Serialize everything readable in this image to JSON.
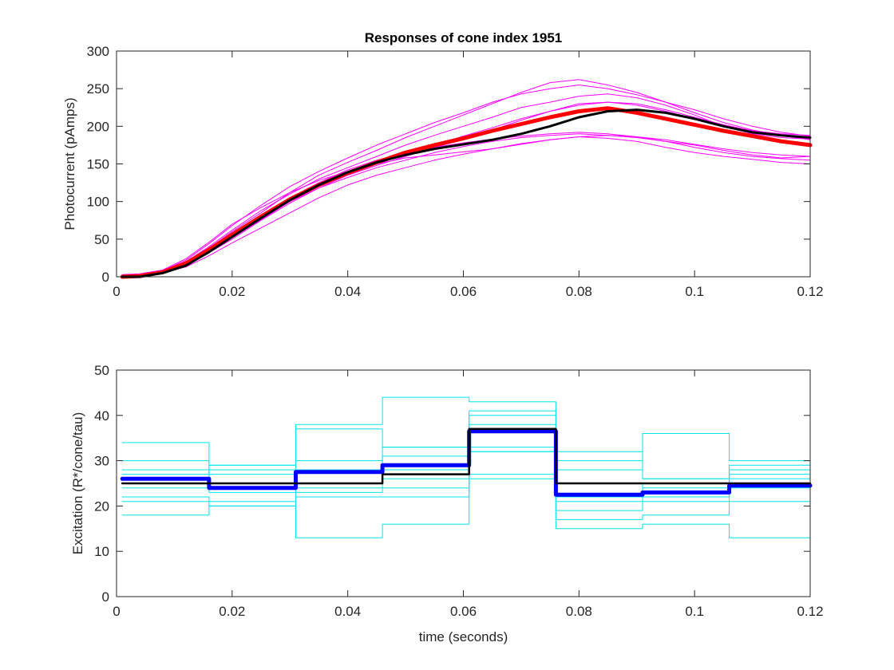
{
  "figure": {
    "background": "#ffffff"
  },
  "chart_data": [
    {
      "type": "line",
      "title": "Responses of cone index 1951",
      "xlabel": "",
      "ylabel": "Photocurrent (pAmps)",
      "xlim": [
        0,
        0.12
      ],
      "ylim": [
        0,
        300
      ],
      "xticks": [
        0,
        0.02,
        0.04,
        0.06,
        0.08,
        0.1,
        0.12
      ],
      "xtick_labels": [
        "0",
        "0.02",
        "0.04",
        "0.06",
        "0.08",
        "0.1",
        "0.12"
      ],
      "yticks": [
        0,
        50,
        100,
        150,
        200,
        250,
        300
      ],
      "ytick_labels": [
        "0",
        "50",
        "100",
        "150",
        "200",
        "250",
        "300"
      ],
      "grid": false,
      "series": [
        {
          "role": "trial",
          "color": "#ff00ff",
          "width": 1,
          "x": [
            0.001,
            0.004,
            0.008,
            0.012,
            0.016,
            0.02,
            0.025,
            0.03,
            0.035,
            0.04,
            0.045,
            0.05,
            0.055,
            0.06,
            0.065,
            0.07,
            0.075,
            0.08,
            0.085,
            0.09,
            0.095,
            0.1,
            0.105,
            0.11,
            0.115,
            0.12
          ],
          "y": [
            0,
            1,
            6,
            18,
            38,
            60,
            85,
            112,
            135,
            152,
            168,
            185,
            200,
            215,
            230,
            245,
            258,
            262,
            255,
            245,
            232,
            218,
            205,
            195,
            188,
            182
          ]
        },
        {
          "role": "trial",
          "color": "#ff00ff",
          "width": 1,
          "x": [
            0.001,
            0.004,
            0.008,
            0.012,
            0.016,
            0.02,
            0.025,
            0.03,
            0.035,
            0.04,
            0.045,
            0.05,
            0.055,
            0.06,
            0.065,
            0.07,
            0.075,
            0.08,
            0.085,
            0.09,
            0.095,
            0.1,
            0.105,
            0.11,
            0.115,
            0.12
          ],
          "y": [
            2,
            3,
            8,
            22,
            44,
            68,
            95,
            120,
            140,
            158,
            175,
            190,
            205,
            218,
            232,
            243,
            250,
            255,
            250,
            242,
            232,
            222,
            210,
            200,
            192,
            187
          ]
        },
        {
          "role": "trial",
          "color": "#ff00ff",
          "width": 1,
          "x": [
            0.001,
            0.004,
            0.008,
            0.012,
            0.016,
            0.02,
            0.025,
            0.03,
            0.035,
            0.04,
            0.045,
            0.05,
            0.055,
            0.06,
            0.065,
            0.07,
            0.075,
            0.08,
            0.085,
            0.09,
            0.095,
            0.1,
            0.105,
            0.11,
            0.115,
            0.12
          ],
          "y": [
            0,
            2,
            7,
            20,
            40,
            62,
            88,
            110,
            130,
            145,
            160,
            175,
            188,
            200,
            212,
            225,
            232,
            240,
            243,
            238,
            228,
            215,
            200,
            190,
            185,
            183
          ]
        },
        {
          "role": "trial",
          "color": "#ff00ff",
          "width": 1,
          "x": [
            0.001,
            0.004,
            0.008,
            0.012,
            0.016,
            0.02,
            0.025,
            0.03,
            0.035,
            0.04,
            0.045,
            0.05,
            0.055,
            0.06,
            0.065,
            0.07,
            0.075,
            0.08,
            0.085,
            0.09,
            0.095,
            0.1,
            0.105,
            0.11,
            0.115,
            0.12
          ],
          "y": [
            0,
            1,
            5,
            15,
            32,
            50,
            75,
            98,
            118,
            135,
            148,
            160,
            172,
            182,
            195,
            208,
            220,
            230,
            232,
            228,
            220,
            210,
            200,
            192,
            187,
            184
          ]
        },
        {
          "role": "trial",
          "color": "#ff00ff",
          "width": 1,
          "x": [
            0.001,
            0.004,
            0.008,
            0.012,
            0.016,
            0.02,
            0.025,
            0.03,
            0.035,
            0.04,
            0.045,
            0.05,
            0.055,
            0.06,
            0.065,
            0.07,
            0.075,
            0.08,
            0.085,
            0.09,
            0.095,
            0.1,
            0.105,
            0.11,
            0.115,
            0.12
          ],
          "y": [
            0,
            2,
            6,
            17,
            35,
            57,
            82,
            105,
            125,
            142,
            155,
            165,
            172,
            178,
            183,
            187,
            190,
            192,
            190,
            186,
            180,
            172,
            165,
            160,
            157,
            155
          ]
        },
        {
          "role": "trial",
          "color": "#ff00ff",
          "width": 1,
          "x": [
            0.001,
            0.004,
            0.008,
            0.012,
            0.016,
            0.02,
            0.025,
            0.03,
            0.035,
            0.04,
            0.045,
            0.05,
            0.055,
            0.06,
            0.065,
            0.07,
            0.075,
            0.08,
            0.085,
            0.09,
            0.095,
            0.1,
            0.105,
            0.11,
            0.115,
            0.12
          ],
          "y": [
            1,
            2,
            7,
            19,
            38,
            58,
            80,
            100,
            118,
            132,
            145,
            155,
            165,
            173,
            180,
            185,
            188,
            190,
            188,
            185,
            180,
            175,
            168,
            162,
            158,
            160
          ]
        },
        {
          "role": "trial",
          "color": "#ff00ff",
          "width": 1,
          "x": [
            0.001,
            0.004,
            0.008,
            0.012,
            0.016,
            0.02,
            0.025,
            0.03,
            0.035,
            0.04,
            0.045,
            0.05,
            0.055,
            0.06,
            0.065,
            0.07,
            0.075,
            0.08,
            0.085,
            0.09,
            0.095,
            0.1,
            0.105,
            0.11,
            0.115,
            0.12
          ],
          "y": [
            0,
            1,
            5,
            13,
            28,
            45,
            65,
            85,
            105,
            122,
            135,
            145,
            155,
            163,
            170,
            177,
            182,
            186,
            188,
            186,
            182,
            176,
            170,
            165,
            162,
            160
          ]
        },
        {
          "role": "trial",
          "color": "#ff00ff",
          "width": 1,
          "x": [
            0.001,
            0.004,
            0.008,
            0.012,
            0.016,
            0.02,
            0.025,
            0.03,
            0.035,
            0.04,
            0.045,
            0.05,
            0.055,
            0.06,
            0.065,
            0.07,
            0.075,
            0.08,
            0.085,
            0.09,
            0.095,
            0.1,
            0.105,
            0.11,
            0.115,
            0.12
          ],
          "y": [
            3,
            4,
            9,
            24,
            46,
            70,
            92,
            112,
            128,
            140,
            152,
            163,
            175,
            187,
            198,
            210,
            220,
            228,
            232,
            230,
            222,
            212,
            202,
            194,
            190,
            188
          ]
        },
        {
          "role": "trial",
          "color": "#ff00ff",
          "width": 1,
          "x": [
            0.001,
            0.004,
            0.008,
            0.012,
            0.016,
            0.02,
            0.025,
            0.03,
            0.035,
            0.04,
            0.045,
            0.05,
            0.055,
            0.06,
            0.065,
            0.07,
            0.075,
            0.08,
            0.085,
            0.09,
            0.095,
            0.1,
            0.105,
            0.11,
            0.115,
            0.12
          ],
          "y": [
            1,
            2,
            6,
            16,
            33,
            52,
            76,
            100,
            120,
            138,
            150,
            158,
            162,
            166,
            170,
            176,
            182,
            186,
            184,
            180,
            172,
            165,
            160,
            156,
            152,
            150
          ]
        },
        {
          "role": "mean",
          "color": "#ff0000",
          "width": 5,
          "x": [
            0.001,
            0.004,
            0.008,
            0.012,
            0.016,
            0.02,
            0.025,
            0.03,
            0.035,
            0.04,
            0.045,
            0.05,
            0.055,
            0.06,
            0.065,
            0.07,
            0.075,
            0.08,
            0.085,
            0.09,
            0.095,
            0.1,
            0.105,
            0.11,
            0.115,
            0.12
          ],
          "y": [
            0,
            1,
            6,
            18,
            36,
            56,
            80,
            103,
            122,
            138,
            152,
            165,
            175,
            184,
            194,
            203,
            212,
            220,
            224,
            218,
            210,
            202,
            194,
            187,
            180,
            175
          ]
        },
        {
          "role": "noise-free",
          "color": "#000000",
          "width": 3,
          "x": [
            0.001,
            0.004,
            0.008,
            0.012,
            0.016,
            0.02,
            0.025,
            0.03,
            0.035,
            0.04,
            0.045,
            0.05,
            0.055,
            0.06,
            0.065,
            0.07,
            0.075,
            0.08,
            0.085,
            0.09,
            0.095,
            0.1,
            0.105,
            0.11,
            0.115,
            0.12
          ],
          "y": [
            0,
            0,
            5,
            15,
            33,
            53,
            78,
            102,
            122,
            139,
            152,
            162,
            170,
            176,
            182,
            190,
            200,
            212,
            220,
            222,
            218,
            210,
            200,
            192,
            188,
            185
          ]
        }
      ]
    },
    {
      "type": "line",
      "title": "",
      "xlabel": "time (seconds)",
      "ylabel": "Excitation (R*/cone/tau)",
      "xlim": [
        0,
        0.12
      ],
      "ylim": [
        0,
        50
      ],
      "xticks": [
        0,
        0.02,
        0.04,
        0.06,
        0.08,
        0.1,
        0.12
      ],
      "xtick_labels": [
        "0",
        "0.02",
        "0.04",
        "0.06",
        "0.08",
        "0.1",
        "0.12"
      ],
      "yticks": [
        0,
        10,
        20,
        30,
        40,
        50
      ],
      "ytick_labels": [
        "0",
        "10",
        "20",
        "30",
        "40",
        "50"
      ],
      "grid": false,
      "bin_edges": [
        0.001,
        0.016,
        0.031,
        0.046,
        0.061,
        0.076,
        0.091,
        0.106,
        0.12
      ],
      "series": [
        {
          "role": "trial",
          "color": "#00e5ee",
          "width": 1,
          "levels": [
            34,
            25,
            38,
            44,
            43,
            30,
            36,
            30
          ]
        },
        {
          "role": "trial",
          "color": "#00e5ee",
          "width": 1,
          "levels": [
            30,
            29,
            37,
            33,
            41,
            28,
            26,
            29
          ]
        },
        {
          "role": "trial",
          "color": "#00e5ee",
          "width": 1,
          "levels": [
            28,
            27,
            30,
            33,
            40,
            32,
            26,
            28
          ]
        },
        {
          "role": "trial",
          "color": "#00e5ee",
          "width": 1,
          "levels": [
            27,
            29,
            28,
            31,
            38,
            25,
            22,
            27
          ]
        },
        {
          "role": "trial",
          "color": "#00e5ee",
          "width": 1,
          "levels": [
            25,
            28,
            25,
            28,
            33,
            22,
            25,
            26
          ]
        },
        {
          "role": "trial",
          "color": "#00e5ee",
          "width": 1,
          "levels": [
            24,
            23,
            24,
            26,
            32,
            21,
            24,
            25
          ]
        },
        {
          "role": "trial",
          "color": "#00e5ee",
          "width": 1,
          "levels": [
            22,
            21,
            23,
            24,
            32,
            19,
            21,
            24
          ]
        },
        {
          "role": "trial",
          "color": "#00e5ee",
          "width": 1,
          "levels": [
            21,
            20,
            22,
            22,
            27,
            17,
            18,
            21
          ]
        },
        {
          "role": "trial",
          "color": "#00e5ee",
          "width": 1,
          "levels": [
            18,
            20,
            13,
            16,
            26,
            15,
            16,
            13
          ]
        },
        {
          "role": "mean",
          "color": "#0000ff",
          "width": 5,
          "levels": [
            26,
            24,
            27.5,
            29,
            36.5,
            22.5,
            23,
            24.5
          ]
        },
        {
          "role": "noise-free",
          "color": "#000000",
          "width": 2.5,
          "levels": [
            25,
            25,
            25,
            27,
            37,
            25,
            25,
            25
          ]
        }
      ]
    }
  ]
}
